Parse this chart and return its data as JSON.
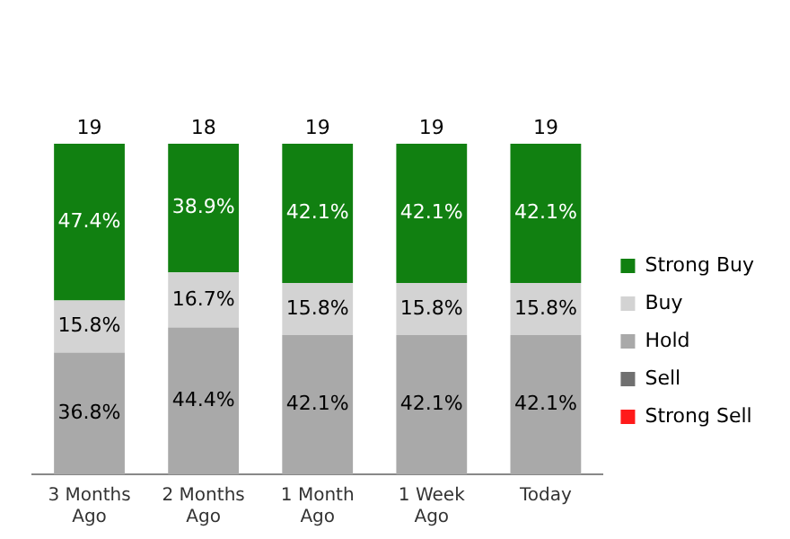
{
  "chart_data": {
    "type": "bar",
    "stacked": true,
    "categories": [
      "3 Months Ago",
      "2 Months Ago",
      "1 Month Ago",
      "1 Week Ago",
      "Today"
    ],
    "series": [
      {
        "name": "Strong Sell",
        "color": "#ff1a1a",
        "values": [
          null,
          null,
          null,
          null,
          null
        ]
      },
      {
        "name": "Sell",
        "color": "#707070",
        "values": [
          null,
          null,
          null,
          null,
          null
        ]
      },
      {
        "name": "Hold",
        "color": "#a9a9a9",
        "values": [
          36.8,
          44.4,
          42.1,
          42.1,
          42.1
        ],
        "value_labels": [
          "36.8%",
          "44.4%",
          "42.1%",
          "42.1%",
          "42.1%"
        ]
      },
      {
        "name": "Buy",
        "color": "#d3d3d3",
        "values": [
          15.8,
          16.7,
          15.8,
          15.8,
          15.8
        ],
        "value_labels": [
          "15.8%",
          "16.7%",
          "15.8%",
          "15.8%",
          "15.8%"
        ]
      },
      {
        "name": "Strong Buy",
        "color": "#118011",
        "values": [
          47.4,
          38.9,
          42.1,
          42.1,
          42.1
        ],
        "value_labels": [
          "47.4%",
          "38.9%",
          "42.1%",
          "42.1%",
          "42.1%"
        ]
      }
    ],
    "annotations": [
      {
        "text": "19",
        "x": "3 Months Ago",
        "y": 100
      },
      {
        "text": "18",
        "x": "2 Months Ago",
        "y": 100
      },
      {
        "text": "19",
        "x": "1 Month Ago",
        "y": 100
      },
      {
        "text": "19",
        "x": "1 Week Ago",
        "y": 100
      },
      {
        "text": "19",
        "x": "Today",
        "y": 100
      }
    ],
    "tick_labels": "x",
    "grid": false,
    "legend": "right"
  }
}
